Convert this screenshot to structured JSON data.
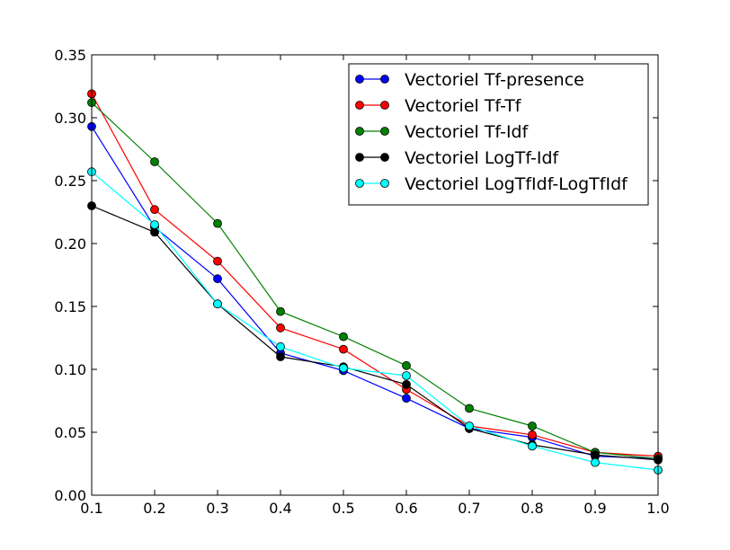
{
  "chart_data": {
    "type": "line",
    "title": "",
    "xlabel": "",
    "ylabel": "",
    "x": [
      0.1,
      0.2,
      0.3,
      0.4,
      0.5,
      0.6,
      0.7,
      0.8,
      0.9,
      1.0
    ],
    "xlim": [
      0.1,
      1.0
    ],
    "ylim": [
      0.0,
      0.35
    ],
    "x_ticks": [
      "0.1",
      "0.2",
      "0.3",
      "0.4",
      "0.5",
      "0.6",
      "0.7",
      "0.8",
      "0.9",
      "1.0"
    ],
    "y_ticks": [
      "0.00",
      "0.05",
      "0.10",
      "0.15",
      "0.20",
      "0.25",
      "0.30",
      "0.35"
    ],
    "grid": false,
    "legend_position": "top-right",
    "series": [
      {
        "name": "Vectoriel Tf-presence",
        "color": "#0000ff",
        "values": [
          0.293,
          0.213,
          0.172,
          0.113,
          0.099,
          0.077,
          0.053,
          0.046,
          0.031,
          0.029
        ]
      },
      {
        "name": "Vectoriel Tf-Tf",
        "color": "#ff0000",
        "values": [
          0.319,
          0.227,
          0.186,
          0.133,
          0.116,
          0.084,
          0.055,
          0.048,
          0.034,
          0.031
        ]
      },
      {
        "name": "Vectoriel Tf-Idf",
        "color": "#008000",
        "values": [
          0.312,
          0.265,
          0.216,
          0.146,
          0.126,
          0.103,
          0.069,
          0.055,
          0.034,
          0.029
        ]
      },
      {
        "name": "Vectoriel LogTf-Idf",
        "color": "#000000",
        "values": [
          0.23,
          0.209,
          0.152,
          0.11,
          0.102,
          0.088,
          0.053,
          0.04,
          0.032,
          0.028
        ]
      },
      {
        "name": "Vectoriel LogTfIdf-LogTfIdf",
        "color": "#00ffff",
        "values": [
          0.257,
          0.215,
          0.152,
          0.118,
          0.101,
          0.095,
          0.055,
          0.039,
          0.026,
          0.02
        ]
      }
    ]
  }
}
